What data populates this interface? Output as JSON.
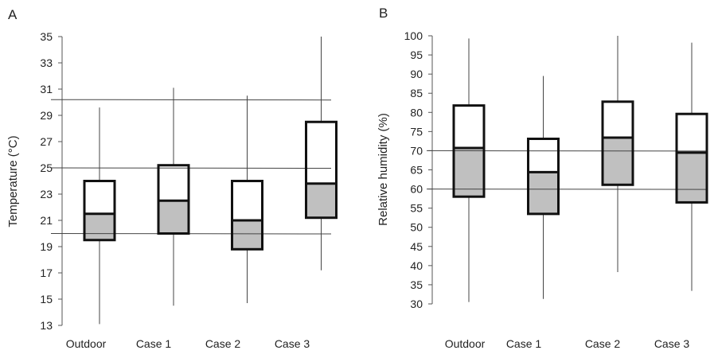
{
  "chart_data": [
    {
      "type": "box",
      "panel_label": "A",
      "title": "",
      "xlabel": "",
      "ylabel": "Temperature (°C)",
      "ylim": [
        13,
        35
      ],
      "yticks": [
        13,
        15,
        17,
        19,
        21,
        23,
        25,
        27,
        29,
        31,
        33,
        35
      ],
      "categories": [
        "Outdoor",
        "Case 1",
        "Case 2",
        "Case 3"
      ],
      "boxes": [
        {
          "name": "Outdoor",
          "min": 13.1,
          "q1": 19.5,
          "median": 21.5,
          "q3": 24.0,
          "max": 29.6
        },
        {
          "name": "Case 1",
          "min": 14.5,
          "q1": 20.0,
          "median": 22.5,
          "q3": 25.2,
          "max": 31.1
        },
        {
          "name": "Case 2",
          "min": 14.7,
          "q1": 18.8,
          "median": 21.0,
          "q3": 24.0,
          "max": 30.5
        },
        {
          "name": "Case 3",
          "min": 17.2,
          "q1": 21.2,
          "median": 23.8,
          "q3": 28.5,
          "max": 35.0
        }
      ],
      "reference_lines": [
        30.2,
        25.0,
        20.0
      ],
      "colors": {
        "lower_box_fill": "#c0c0c0",
        "upper_box_fill": "#ffffff",
        "stroke": "#111111",
        "ref_line": "#444444"
      },
      "grid": false,
      "legend": "none"
    },
    {
      "type": "box",
      "panel_label": "B",
      "title": "",
      "xlabel": "",
      "ylabel": "Relative humidity  (%)",
      "ylim": [
        30,
        100
      ],
      "yticks": [
        30,
        35,
        40,
        45,
        50,
        55,
        60,
        65,
        70,
        75,
        80,
        85,
        90,
        95,
        100
      ],
      "categories": [
        "Outdoor",
        "Case 1",
        "Case 2",
        "Case 3"
      ],
      "boxes": [
        {
          "name": "Outdoor",
          "min": 30.5,
          "q1": 58.0,
          "median": 70.7,
          "q3": 81.8,
          "max": 99.3
        },
        {
          "name": "Case 1",
          "min": 31.3,
          "q1": 53.5,
          "median": 64.4,
          "q3": 73.1,
          "max": 89.5
        },
        {
          "name": "Case 2",
          "min": 38.3,
          "q1": 61.1,
          "median": 73.4,
          "q3": 82.8,
          "max": 100.0
        },
        {
          "name": "Case 3",
          "min": 33.4,
          "q1": 56.5,
          "median": 69.5,
          "q3": 79.6,
          "max": 98.2
        }
      ],
      "reference_lines": [
        70.0,
        60.0
      ],
      "colors": {
        "lower_box_fill": "#c0c0c0",
        "upper_box_fill": "#ffffff",
        "stroke": "#111111",
        "ref_line": "#444444"
      },
      "grid": false,
      "legend": "none"
    }
  ]
}
